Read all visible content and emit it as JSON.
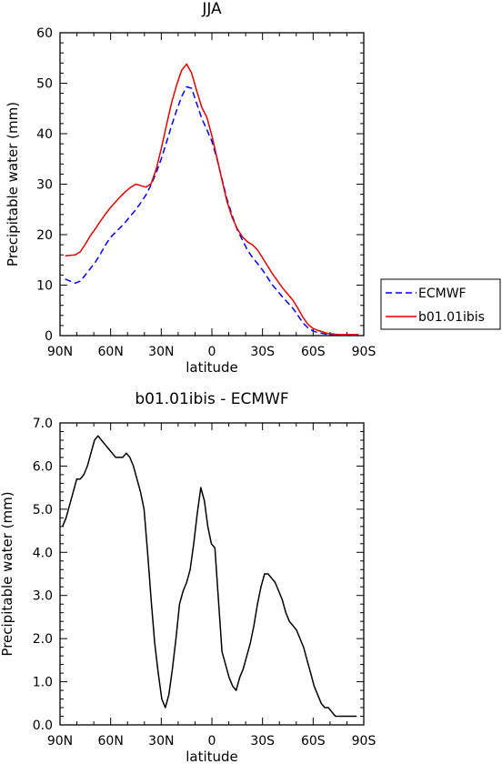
{
  "chart_data": [
    {
      "type": "line",
      "title": "JJA",
      "xlabel": "latitude",
      "ylabel": "Precipitable water (mm)",
      "xlim": [
        90,
        -90
      ],
      "ylim": [
        0,
        60
      ],
      "xticks": [
        90,
        60,
        30,
        0,
        -30,
        -60,
        -90
      ],
      "xtick_labels": [
        "90N",
        "60N",
        "30N",
        "0",
        "30S",
        "60S",
        "90S"
      ],
      "yticks": [
        0,
        10,
        20,
        30,
        40,
        50,
        60
      ],
      "ytick_labels": [
        "0",
        "10",
        "20",
        "30",
        "40",
        "50",
        "60"
      ],
      "legend_position": "right",
      "series": [
        {
          "name": "ECMWF",
          "color": "#0000ff",
          "dash": "dashed",
          "x": [
            87,
            84,
            81,
            78,
            75,
            72,
            69,
            66,
            63,
            60,
            57,
            54,
            51,
            48,
            45,
            42,
            39,
            36,
            33,
            30,
            27,
            24,
            21,
            18,
            15,
            12,
            9,
            6,
            3,
            0,
            -3,
            -6,
            -9,
            -12,
            -15,
            -18,
            -21,
            -24,
            -27,
            -30,
            -33,
            -36,
            -39,
            -42,
            -45,
            -48,
            -51,
            -54,
            -57,
            -60,
            -63,
            -66,
            -69,
            -72,
            -75,
            -78,
            -81,
            -84,
            -87
          ],
          "y": [
            11.2,
            10.8,
            10.4,
            10.8,
            12.0,
            13.3,
            14.6,
            16.2,
            18.0,
            19.5,
            20.5,
            21.5,
            22.6,
            23.8,
            25.0,
            26.4,
            27.9,
            29.9,
            32.3,
            35.0,
            38.2,
            41.5,
            44.5,
            47.3,
            49.3,
            49.0,
            46.0,
            43.0,
            40.8,
            38.5,
            35.0,
            31.0,
            27.0,
            23.8,
            21.0,
            19.0,
            17.0,
            15.5,
            14.3,
            13.0,
            11.5,
            10.0,
            8.8,
            7.6,
            6.5,
            5.4,
            4.0,
            2.5,
            1.5,
            0.9,
            0.6,
            0.4,
            0.2,
            0.1,
            0.1,
            0.1,
            0.1,
            0.1,
            0.1
          ]
        },
        {
          "name": "b01.01ibis",
          "color": "#e00000",
          "dash": "solid",
          "x": [
            87,
            84,
            81,
            78,
            75,
            72,
            69,
            66,
            63,
            60,
            57,
            54,
            51,
            48,
            45,
            42,
            39,
            36,
            33,
            30,
            27,
            24,
            21,
            18,
            15,
            12,
            9,
            6,
            3,
            0,
            -3,
            -6,
            -9,
            -12,
            -15,
            -18,
            -21,
            -24,
            -27,
            -30,
            -33,
            -36,
            -39,
            -42,
            -45,
            -48,
            -51,
            -54,
            -57,
            -60,
            -63,
            -66,
            -69,
            -72,
            -75,
            -78,
            -81,
            -84,
            -87
          ],
          "y": [
            15.8,
            15.9,
            16.0,
            16.6,
            18.1,
            19.8,
            21.2,
            22.7,
            24.1,
            25.4,
            26.5,
            27.6,
            28.6,
            29.4,
            30.0,
            29.7,
            29.4,
            30.1,
            33.0,
            37.0,
            41.6,
            46.0,
            49.5,
            52.5,
            53.8,
            52.0,
            48.5,
            45.2,
            43.3,
            39.6,
            35.2,
            30.8,
            26.5,
            23.4,
            21.2,
            19.6,
            18.6,
            18.0,
            17.0,
            15.4,
            13.8,
            12.2,
            10.8,
            9.4,
            8.2,
            7.0,
            5.4,
            3.6,
            2.2,
            1.4,
            1.0,
            0.7,
            0.4,
            0.3,
            0.2,
            0.2,
            0.2,
            0.2,
            0.2
          ]
        }
      ]
    },
    {
      "type": "line",
      "title": "b01.01ibis - ECMWF",
      "xlabel": "latitude",
      "ylabel": "Precipitable water (mm)",
      "xlim": [
        90,
        -90
      ],
      "ylim": [
        0,
        7
      ],
      "xticks": [
        90,
        60,
        30,
        0,
        -30,
        -60,
        -90
      ],
      "xtick_labels": [
        "90N",
        "60N",
        "30N",
        "0",
        "30S",
        "60S",
        "90S"
      ],
      "yticks": [
        0,
        1,
        2,
        3,
        4,
        5,
        6,
        7
      ],
      "ytick_labels": [
        "0.0",
        "1.0",
        "2.0",
        "3.0",
        "4.0",
        "5.0",
        "6.0",
        "7.0"
      ],
      "series": [
        {
          "color": "#000000",
          "dash": "solid",
          "x": [
            88.5,
            86.4,
            84.3,
            82.2,
            80.1,
            78.0,
            75.9,
            73.8,
            71.7,
            69.6,
            67.5,
            65.4,
            63.3,
            61.2,
            59.1,
            57.0,
            54.9,
            52.8,
            50.7,
            48.6,
            46.5,
            44.4,
            42.3,
            40.2,
            38.1,
            36.0,
            33.9,
            31.8,
            29.7,
            27.6,
            25.5,
            23.4,
            21.3,
            19.2,
            17.1,
            15.0,
            12.9,
            10.8,
            8.7,
            6.6,
            4.5,
            2.4,
            0.3,
            -1.8,
            -3.9,
            -6.0,
            -8.1,
            -10.2,
            -12.3,
            -14.4,
            -16.5,
            -18.6,
            -20.7,
            -22.8,
            -24.9,
            -27.0,
            -29.1,
            -31.2,
            -33.3,
            -35.4,
            -37.5,
            -39.6,
            -41.7,
            -43.8,
            -45.9,
            -48.0,
            -50.1,
            -52.2,
            -54.3,
            -56.4,
            -58.5,
            -60.6,
            -62.7,
            -64.8,
            -66.9,
            -69.0,
            -71.1,
            -73.2,
            -75.3,
            -77.4,
            -79.5,
            -81.6,
            -83.7,
            -85.8
          ],
          "y": [
            4.6,
            4.8,
            5.1,
            5.4,
            5.7,
            5.7,
            5.8,
            6.0,
            6.3,
            6.6,
            6.7,
            6.6,
            6.5,
            6.4,
            6.3,
            6.2,
            6.2,
            6.2,
            6.3,
            6.2,
            6.0,
            5.7,
            5.4,
            5.0,
            4.0,
            2.9,
            1.9,
            1.2,
            0.6,
            0.4,
            0.7,
            1.3,
            2.0,
            2.8,
            3.1,
            3.3,
            3.6,
            4.2,
            4.9,
            5.5,
            5.2,
            4.6,
            4.2,
            4.1,
            2.9,
            1.7,
            1.4,
            1.1,
            0.9,
            0.8,
            1.1,
            1.3,
            1.6,
            1.9,
            2.3,
            2.8,
            3.2,
            3.5,
            3.5,
            3.4,
            3.3,
            3.1,
            2.9,
            2.6,
            2.4,
            2.3,
            2.2,
            2.0,
            1.8,
            1.5,
            1.2,
            0.9,
            0.7,
            0.5,
            0.4,
            0.4,
            0.3,
            0.2,
            0.2,
            0.2,
            0.2,
            0.2,
            0.2,
            0.2
          ]
        }
      ]
    }
  ]
}
